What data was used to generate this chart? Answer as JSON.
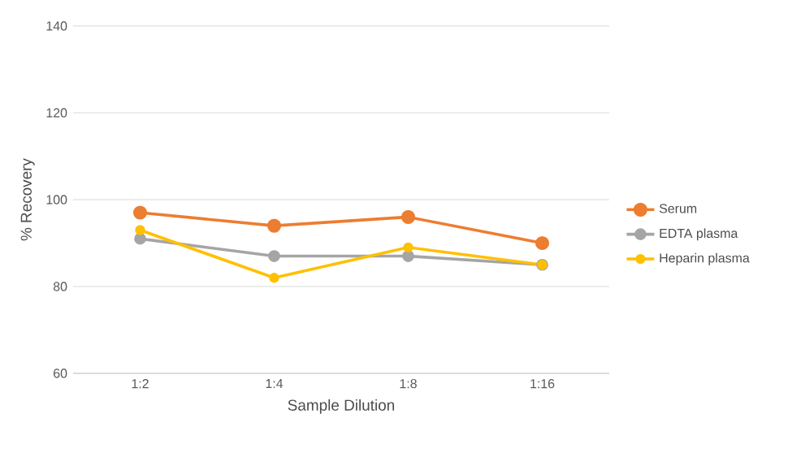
{
  "chart_data": {
    "type": "line",
    "xlabel": "Sample Dilution",
    "ylabel": "% Recovery",
    "categories": [
      "1:2",
      "1:4",
      "1:8",
      "1:16"
    ],
    "series": [
      {
        "name": "Serum",
        "color": "#ed7d31",
        "values": [
          97,
          94,
          96,
          90
        ]
      },
      {
        "name": "EDTA plasma",
        "color": "#a5a5a5",
        "values": [
          91,
          87,
          87,
          85
        ]
      },
      {
        "name": "Heparin plasma",
        "color": "#ffc000",
        "values": [
          93,
          82,
          89,
          85
        ]
      }
    ],
    "ylim": [
      60,
      140
    ],
    "yticks": [
      60,
      80,
      100,
      120,
      140
    ],
    "grid": "y",
    "legend": "right",
    "marker": "circle",
    "line_style": "solid"
  }
}
